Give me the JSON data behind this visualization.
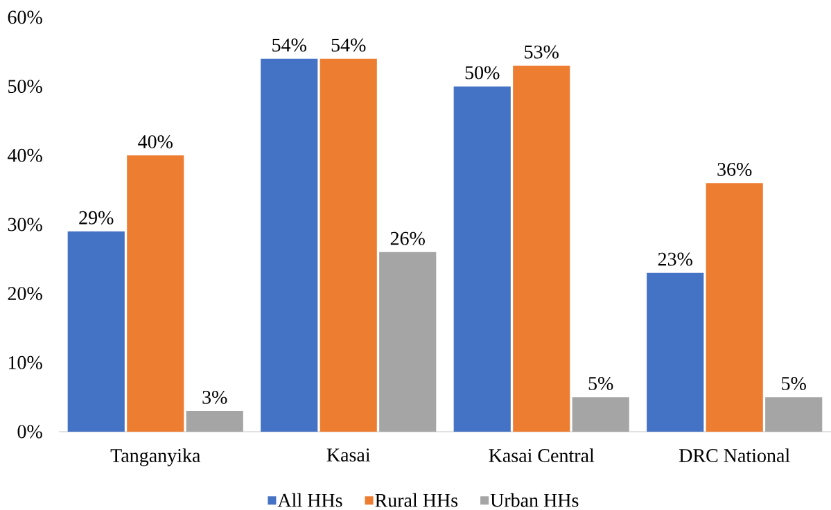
{
  "chart_data": {
    "type": "bar",
    "categories": [
      "Tanganyika",
      "Kasai",
      "Kasai Central",
      "DRC National"
    ],
    "series": [
      {
        "name": "All HHs",
        "color": "#4472c4",
        "values": [
          29,
          54,
          50,
          23
        ],
        "value_labels": [
          "29%",
          "54%",
          "50%",
          "23%"
        ]
      },
      {
        "name": "Rural HHs",
        "color": "#ed7d31",
        "values": [
          40,
          54,
          53,
          36
        ],
        "value_labels": [
          "40%",
          "54%",
          "53%",
          "36%"
        ]
      },
      {
        "name": "Urban HHs",
        "color": "#a5a5a5",
        "values": [
          3,
          26,
          5,
          5
        ],
        "value_labels": [
          "3%",
          "26%",
          "5%",
          "5%"
        ]
      }
    ],
    "ylim": [
      0,
      60
    ],
    "yticks": [
      {
        "value": 0,
        "label": "0%"
      },
      {
        "value": 10,
        "label": "10%"
      },
      {
        "value": 20,
        "label": "20%"
      },
      {
        "value": 30,
        "label": "30%"
      },
      {
        "value": 40,
        "label": "40%"
      },
      {
        "value": 50,
        "label": "50%"
      },
      {
        "value": 60,
        "label": "60%"
      }
    ],
    "legend": "bottom"
  }
}
